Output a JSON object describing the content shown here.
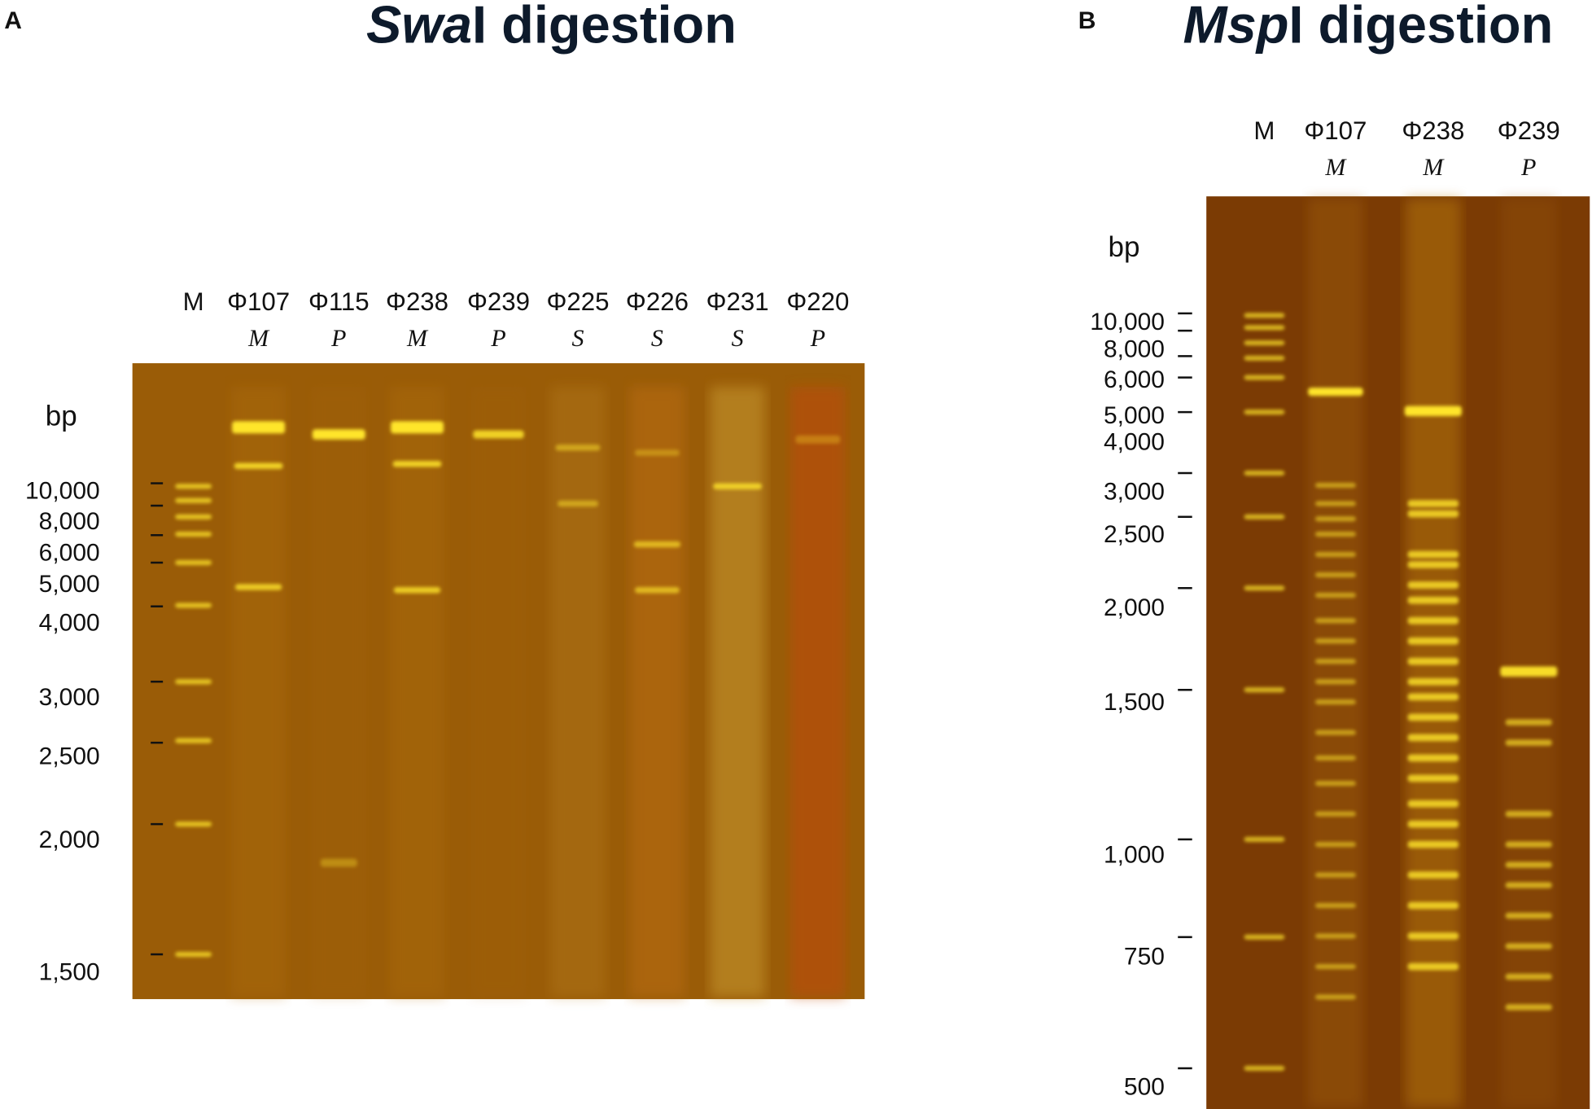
{
  "panels": [
    {
      "label": "A",
      "title": {
        "italic": "Swa",
        "rest": "I digestion"
      },
      "unit": "bp",
      "lanes": [
        {
          "name": "M"
        },
        {
          "name": "Φ107",
          "type": "M"
        },
        {
          "name": "Φ115",
          "type": "P"
        },
        {
          "name": "Φ238",
          "type": "M"
        },
        {
          "name": "Φ239",
          "type": "P"
        },
        {
          "name": "Φ225",
          "type": "S"
        },
        {
          "name": "Φ226",
          "type": "S"
        },
        {
          "name": "Φ231",
          "type": "S"
        },
        {
          "name": "Φ220",
          "type": "P"
        }
      ],
      "markers": [
        "10,000",
        "8,000",
        "6,000",
        "5,000",
        "4,000",
        "3,000",
        "2,500",
        "2,000",
        "1,500"
      ]
    },
    {
      "label": "B",
      "title": {
        "italic": "Msp",
        "rest": "I digestion"
      },
      "unit": "bp",
      "lanes": [
        {
          "name": "M"
        },
        {
          "name": "Φ107",
          "type": "M"
        },
        {
          "name": "Φ238",
          "type": "M"
        },
        {
          "name": "Φ239",
          "type": "P"
        }
      ],
      "markers": [
        "10,000",
        "8,000",
        "6,000",
        "5,000",
        "4,000",
        "3,000",
        "2,500",
        "2,000",
        "1,500",
        "1,000",
        "750",
        "500"
      ]
    }
  ]
}
